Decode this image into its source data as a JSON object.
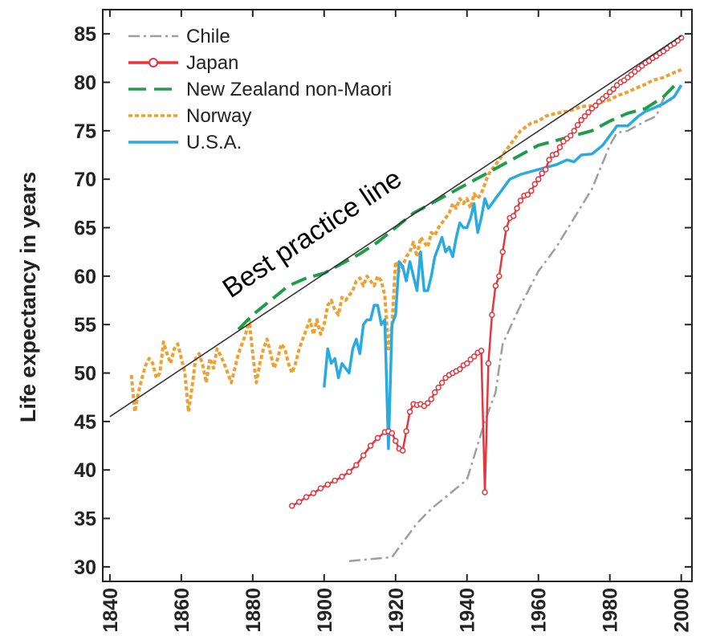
{
  "chart_data": {
    "type": "line",
    "xlabel": "",
    "ylabel": "Life expectancy in years",
    "xlim": [
      1838,
      2003
    ],
    "ylim": [
      28.5,
      87.5
    ],
    "xticks": [
      1840,
      1860,
      1880,
      1900,
      1920,
      1940,
      1960,
      1980,
      2000
    ],
    "yticks": [
      30,
      35,
      40,
      45,
      50,
      55,
      60,
      65,
      70,
      75,
      80,
      85
    ],
    "grid": false,
    "legend_position": "top-left",
    "annotation": "Best practice line",
    "best_practice_line": {
      "x": [
        1840,
        2000
      ],
      "y": [
        45.5,
        84.8
      ]
    },
    "series": [
      {
        "name": "Chile",
        "color": "#9e9e9e",
        "style": "dashdot",
        "x": [
          1907,
          1919,
          1926,
          1930,
          1940,
          1945,
          1948,
          1950,
          1955,
          1960,
          1965,
          1970,
          1975,
          1980,
          1982,
          1985,
          1990,
          1993,
          1995,
          1998
        ],
        "y": [
          30.6,
          31.0,
          34.5,
          36.0,
          39.0,
          45.0,
          48.0,
          53.0,
          57.0,
          60.5,
          63.0,
          66.0,
          69.0,
          73.5,
          74.8,
          75.0,
          76.0,
          76.5,
          78.3,
          78.1
        ]
      },
      {
        "name": "Japan",
        "color": "#e8343c",
        "style": "solid-circle-markers",
        "x": [
          1891,
          1893,
          1895,
          1897,
          1899,
          1901,
          1903,
          1905,
          1907,
          1909,
          1911,
          1913,
          1915,
          1917,
          1918,
          1919,
          1920,
          1921,
          1922,
          1923,
          1924,
          1925,
          1926,
          1927,
          1928,
          1929,
          1930,
          1931,
          1932,
          1933,
          1934,
          1935,
          1936,
          1937,
          1938,
          1939,
          1940,
          1941,
          1942,
          1943,
          1944,
          1945,
          1946,
          1947,
          1948,
          1949,
          1950,
          1951,
          1952,
          1953,
          1954,
          1955,
          1956,
          1957,
          1958,
          1959,
          1960,
          1961,
          1962,
          1963,
          1964,
          1965,
          1966,
          1967,
          1968,
          1969,
          1970,
          1971,
          1972,
          1973,
          1974,
          1975,
          1976,
          1977,
          1978,
          1979,
          1980,
          1981,
          1982,
          1983,
          1984,
          1985,
          1986,
          1987,
          1988,
          1989,
          1990,
          1991,
          1992,
          1993,
          1994,
          1995,
          1996,
          1997,
          1998,
          1999,
          2000
        ],
        "y": [
          36.3,
          36.7,
          37.2,
          37.6,
          38.1,
          38.5,
          38.9,
          39.3,
          39.8,
          40.5,
          41.5,
          42.5,
          43.3,
          43.9,
          44.0,
          43.8,
          43.0,
          42.2,
          42.0,
          44.0,
          46.0,
          46.8,
          46.7,
          46.8,
          46.6,
          46.9,
          47.3,
          48.0,
          48.5,
          49.0,
          49.5,
          49.8,
          50.0,
          50.2,
          50.4,
          50.8,
          51.0,
          51.4,
          51.7,
          52.1,
          52.3,
          37.7,
          51.0,
          56.0,
          59.0,
          60.0,
          62.5,
          64.9,
          66.0,
          66.2,
          67.0,
          67.8,
          68.3,
          68.4,
          68.8,
          69.5,
          70.0,
          70.6,
          71.0,
          72.0,
          72.5,
          72.6,
          73.3,
          73.9,
          74.2,
          74.5,
          75.0,
          75.6,
          76.1,
          76.5,
          76.9,
          77.3,
          77.6,
          78.0,
          78.3,
          78.6,
          79.0,
          79.3,
          79.7,
          80.0,
          80.2,
          80.5,
          80.8,
          81.1,
          81.4,
          81.7,
          82.0,
          82.2,
          82.5,
          82.7,
          83.0,
          83.2,
          83.5,
          83.8,
          84.0,
          84.3,
          84.6
        ]
      },
      {
        "name": "New Zealand non-Maori",
        "color": "#1f9e4a",
        "style": "dashed",
        "x": [
          1876,
          1880,
          1885,
          1890,
          1895,
          1900,
          1905,
          1910,
          1915,
          1920,
          1925,
          1930,
          1935,
          1940,
          1945,
          1950,
          1955,
          1960,
          1965,
          1970,
          1975,
          1980,
          1985,
          1990,
          1995,
          1999
        ],
        "y": [
          54.5,
          56.0,
          57.5,
          59.0,
          59.8,
          60.3,
          61.3,
          62.3,
          63.5,
          65.0,
          66.5,
          67.5,
          68.5,
          69.5,
          70.5,
          71.5,
          72.5,
          73.5,
          74.0,
          74.5,
          75.0,
          76.0,
          76.8,
          77.3,
          78.5,
          80.0
        ]
      },
      {
        "name": "Norway",
        "color": "#f0a030",
        "style": "dotted",
        "x": [
          1846,
          1847,
          1848,
          1849,
          1850,
          1851,
          1852,
          1853,
          1854,
          1855,
          1856,
          1857,
          1858,
          1859,
          1860,
          1861,
          1862,
          1863,
          1864,
          1865,
          1866,
          1867,
          1868,
          1869,
          1870,
          1871,
          1872,
          1873,
          1874,
          1875,
          1876,
          1877,
          1878,
          1879,
          1880,
          1881,
          1882,
          1883,
          1884,
          1885,
          1886,
          1887,
          1888,
          1889,
          1890,
          1891,
          1892,
          1893,
          1894,
          1895,
          1896,
          1897,
          1898,
          1899,
          1900,
          1901,
          1902,
          1903,
          1904,
          1905,
          1906,
          1907,
          1908,
          1909,
          1910,
          1911,
          1912,
          1913,
          1914,
          1915,
          1916,
          1917,
          1918,
          1919,
          1920,
          1921,
          1922,
          1923,
          1924,
          1925,
          1926,
          1927,
          1928,
          1929,
          1930,
          1931,
          1932,
          1933,
          1934,
          1935,
          1936,
          1937,
          1938,
          1939,
          1940,
          1941,
          1942,
          1943,
          1944,
          1945,
          1946,
          1947,
          1948,
          1949,
          1950,
          1952,
          1955,
          1958,
          1960,
          1962,
          1965,
          1968,
          1970,
          1972,
          1975,
          1978,
          1980,
          1982,
          1985,
          1988,
          1990,
          1992,
          1995,
          1998,
          2000
        ],
        "y": [
          49.8,
          46.0,
          48.0,
          49.5,
          50.8,
          51.5,
          51.0,
          49.5,
          50.0,
          53.2,
          52.0,
          51.0,
          52.5,
          53.0,
          51.5,
          50.0,
          46.0,
          48.5,
          51.5,
          52.0,
          50.8,
          49.0,
          51.5,
          50.5,
          52.5,
          51.8,
          51.0,
          50.0,
          49.0,
          50.5,
          52.0,
          53.0,
          54.0,
          55.5,
          52.0,
          49.0,
          51.0,
          52.5,
          53.5,
          52.0,
          50.5,
          51.5,
          53.0,
          52.5,
          51.0,
          50.0,
          51.0,
          52.5,
          53.5,
          54.5,
          55.5,
          54.0,
          55.5,
          54.0,
          55.0,
          57.0,
          57.5,
          56.5,
          56.0,
          57.8,
          57.5,
          58.0,
          58.5,
          59.5,
          59.8,
          59.0,
          60.0,
          59.5,
          59.0,
          60.0,
          59.5,
          58.0,
          52.5,
          55.0,
          61.5,
          60.5,
          61.0,
          62.0,
          62.5,
          63.5,
          62.0,
          64.0,
          63.5,
          63.0,
          64.5,
          64.2,
          65.0,
          65.5,
          66.0,
          66.5,
          67.5,
          67.0,
          68.0,
          67.5,
          68.0,
          67.0,
          68.5,
          68.0,
          68.5,
          69.5,
          70.5,
          71.0,
          71.5,
          72.0,
          72.5,
          73.5,
          75.0,
          75.8,
          76.0,
          76.5,
          76.8,
          77.0,
          77.2,
          77.5,
          77.6,
          78.0,
          78.2,
          78.6,
          79.0,
          79.5,
          79.8,
          80.2,
          80.5,
          81.0,
          81.3
        ]
      },
      {
        "name": "U.S.A.",
        "color": "#29abe2",
        "style": "solid",
        "x": [
          1900,
          1901,
          1902,
          1903,
          1904,
          1905,
          1906,
          1907,
          1908,
          1909,
          1910,
          1911,
          1912,
          1913,
          1914,
          1915,
          1916,
          1917,
          1918,
          1919,
          1920,
          1921,
          1922,
          1923,
          1924,
          1925,
          1926,
          1927,
          1928,
          1929,
          1930,
          1931,
          1932,
          1933,
          1934,
          1935,
          1936,
          1937,
          1938,
          1939,
          1940,
          1941,
          1942,
          1943,
          1944,
          1945,
          1946,
          1947,
          1948,
          1949,
          1950,
          1952,
          1955,
          1958,
          1960,
          1962,
          1965,
          1968,
          1970,
          1972,
          1975,
          1978,
          1980,
          1982,
          1985,
          1988,
          1990,
          1992,
          1995,
          1998,
          2000
        ],
        "y": [
          48.5,
          52.5,
          51.0,
          51.5,
          49.5,
          51.0,
          50.5,
          50.0,
          52.5,
          53.5,
          52.0,
          55.0,
          55.5,
          55.5,
          57.0,
          57.0,
          55.0,
          55.5,
          42.2,
          55.0,
          56.0,
          61.5,
          61.0,
          59.5,
          61.5,
          60.0,
          58.5,
          62.5,
          58.5,
          58.5,
          60.0,
          62.0,
          63.0,
          64.0,
          62.5,
          63.0,
          62.0,
          64.0,
          65.5,
          65.0,
          65.0,
          66.0,
          67.5,
          64.5,
          66.0,
          68.0,
          67.0,
          67.5,
          68.0,
          68.5,
          69.0,
          70.0,
          70.5,
          70.8,
          71.0,
          71.2,
          71.5,
          72.0,
          71.8,
          72.5,
          72.6,
          73.5,
          74.5,
          75.5,
          75.5,
          76.5,
          77.0,
          77.3,
          77.8,
          78.5,
          79.7
        ]
      }
    ]
  }
}
